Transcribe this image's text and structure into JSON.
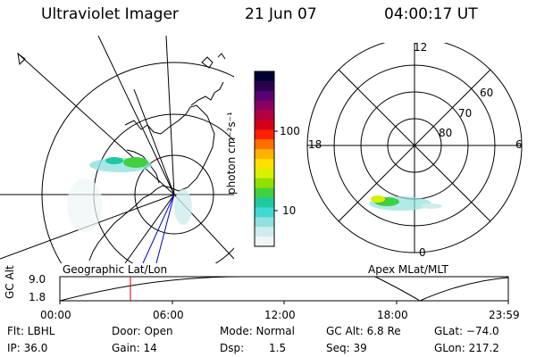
{
  "header": {
    "title": "Ultraviolet Imager",
    "date": "21 Jun 07",
    "time": "04:00:17 UT"
  },
  "colorbar": {
    "label": "photon cm⁻²s⁻¹",
    "ticks": [
      "100",
      "10"
    ],
    "colors": [
      "#000033",
      "#2a0050",
      "#5a0070",
      "#8a0060",
      "#b00040",
      "#d40018",
      "#ff2000",
      "#ff7000",
      "#ffb000",
      "#ffe000",
      "#d8f000",
      "#90e000",
      "#40d040",
      "#20c8a0",
      "#40d8d0",
      "#90e0e0",
      "#d0ecec",
      "#eef6f6"
    ]
  },
  "left_map": {
    "label": "Geographic Lat/Lon"
  },
  "right_map": {
    "label": "Apex  MLat/MLT",
    "mlt_labels": [
      "12",
      "18",
      "6",
      "0"
    ],
    "mlat_labels": [
      "60",
      "70",
      "80"
    ]
  },
  "timeline": {
    "ylabel": "GC Alt",
    "yticks": [
      "9.0",
      "1.8"
    ],
    "xticks": [
      "00:00",
      "06:00",
      "12:00",
      "18:00",
      "23:59"
    ]
  },
  "info": {
    "row1": {
      "flt": "Flt: LBHL",
      "door": "Door: Open",
      "mode": "Mode: Normal",
      "gcalt": "GC Alt: 6.8 Re",
      "glat": "GLat: −74.0"
    },
    "row2": {
      "ip": "IP: 36.0",
      "gain": "Gain: 14",
      "dsp_label": "Dsp:",
      "dsp_value": "1.5",
      "seq": "Seq: 39",
      "glon": "GLon: 217.2"
    }
  },
  "colors": {
    "marker": "#cc0000",
    "blue_line": "#0000cc"
  }
}
